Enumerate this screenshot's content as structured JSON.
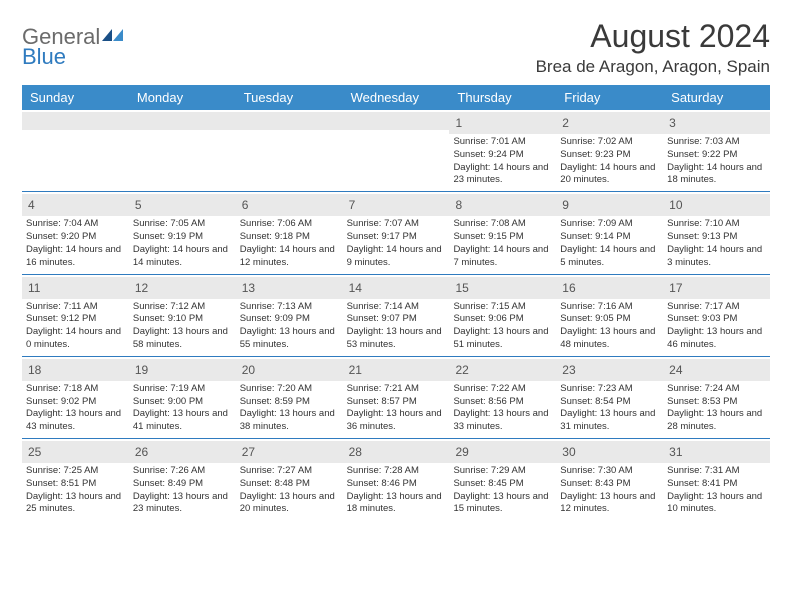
{
  "brand": {
    "part1": "General",
    "part2": "Blue"
  },
  "title": "August 2024",
  "location": "Brea de Aragon, Aragon, Spain",
  "colors": {
    "header_bg": "#3a8bc9",
    "border": "#2f7bbf",
    "daynum_bg": "#e9e9e9",
    "text": "#333333",
    "logo_gray": "#6b6b6b",
    "logo_blue": "#2f7bbf"
  },
  "day_names": [
    "Sunday",
    "Monday",
    "Tuesday",
    "Wednesday",
    "Thursday",
    "Friday",
    "Saturday"
  ],
  "weeks": [
    [
      {
        "n": "",
        "sr": "",
        "ss": "",
        "dl": ""
      },
      {
        "n": "",
        "sr": "",
        "ss": "",
        "dl": ""
      },
      {
        "n": "",
        "sr": "",
        "ss": "",
        "dl": ""
      },
      {
        "n": "",
        "sr": "",
        "ss": "",
        "dl": ""
      },
      {
        "n": "1",
        "sr": "Sunrise: 7:01 AM",
        "ss": "Sunset: 9:24 PM",
        "dl": "Daylight: 14 hours and 23 minutes."
      },
      {
        "n": "2",
        "sr": "Sunrise: 7:02 AM",
        "ss": "Sunset: 9:23 PM",
        "dl": "Daylight: 14 hours and 20 minutes."
      },
      {
        "n": "3",
        "sr": "Sunrise: 7:03 AM",
        "ss": "Sunset: 9:22 PM",
        "dl": "Daylight: 14 hours and 18 minutes."
      }
    ],
    [
      {
        "n": "4",
        "sr": "Sunrise: 7:04 AM",
        "ss": "Sunset: 9:20 PM",
        "dl": "Daylight: 14 hours and 16 minutes."
      },
      {
        "n": "5",
        "sr": "Sunrise: 7:05 AM",
        "ss": "Sunset: 9:19 PM",
        "dl": "Daylight: 14 hours and 14 minutes."
      },
      {
        "n": "6",
        "sr": "Sunrise: 7:06 AM",
        "ss": "Sunset: 9:18 PM",
        "dl": "Daylight: 14 hours and 12 minutes."
      },
      {
        "n": "7",
        "sr": "Sunrise: 7:07 AM",
        "ss": "Sunset: 9:17 PM",
        "dl": "Daylight: 14 hours and 9 minutes."
      },
      {
        "n": "8",
        "sr": "Sunrise: 7:08 AM",
        "ss": "Sunset: 9:15 PM",
        "dl": "Daylight: 14 hours and 7 minutes."
      },
      {
        "n": "9",
        "sr": "Sunrise: 7:09 AM",
        "ss": "Sunset: 9:14 PM",
        "dl": "Daylight: 14 hours and 5 minutes."
      },
      {
        "n": "10",
        "sr": "Sunrise: 7:10 AM",
        "ss": "Sunset: 9:13 PM",
        "dl": "Daylight: 14 hours and 3 minutes."
      }
    ],
    [
      {
        "n": "11",
        "sr": "Sunrise: 7:11 AM",
        "ss": "Sunset: 9:12 PM",
        "dl": "Daylight: 14 hours and 0 minutes."
      },
      {
        "n": "12",
        "sr": "Sunrise: 7:12 AM",
        "ss": "Sunset: 9:10 PM",
        "dl": "Daylight: 13 hours and 58 minutes."
      },
      {
        "n": "13",
        "sr": "Sunrise: 7:13 AM",
        "ss": "Sunset: 9:09 PM",
        "dl": "Daylight: 13 hours and 55 minutes."
      },
      {
        "n": "14",
        "sr": "Sunrise: 7:14 AM",
        "ss": "Sunset: 9:07 PM",
        "dl": "Daylight: 13 hours and 53 minutes."
      },
      {
        "n": "15",
        "sr": "Sunrise: 7:15 AM",
        "ss": "Sunset: 9:06 PM",
        "dl": "Daylight: 13 hours and 51 minutes."
      },
      {
        "n": "16",
        "sr": "Sunrise: 7:16 AM",
        "ss": "Sunset: 9:05 PM",
        "dl": "Daylight: 13 hours and 48 minutes."
      },
      {
        "n": "17",
        "sr": "Sunrise: 7:17 AM",
        "ss": "Sunset: 9:03 PM",
        "dl": "Daylight: 13 hours and 46 minutes."
      }
    ],
    [
      {
        "n": "18",
        "sr": "Sunrise: 7:18 AM",
        "ss": "Sunset: 9:02 PM",
        "dl": "Daylight: 13 hours and 43 minutes."
      },
      {
        "n": "19",
        "sr": "Sunrise: 7:19 AM",
        "ss": "Sunset: 9:00 PM",
        "dl": "Daylight: 13 hours and 41 minutes."
      },
      {
        "n": "20",
        "sr": "Sunrise: 7:20 AM",
        "ss": "Sunset: 8:59 PM",
        "dl": "Daylight: 13 hours and 38 minutes."
      },
      {
        "n": "21",
        "sr": "Sunrise: 7:21 AM",
        "ss": "Sunset: 8:57 PM",
        "dl": "Daylight: 13 hours and 36 minutes."
      },
      {
        "n": "22",
        "sr": "Sunrise: 7:22 AM",
        "ss": "Sunset: 8:56 PM",
        "dl": "Daylight: 13 hours and 33 minutes."
      },
      {
        "n": "23",
        "sr": "Sunrise: 7:23 AM",
        "ss": "Sunset: 8:54 PM",
        "dl": "Daylight: 13 hours and 31 minutes."
      },
      {
        "n": "24",
        "sr": "Sunrise: 7:24 AM",
        "ss": "Sunset: 8:53 PM",
        "dl": "Daylight: 13 hours and 28 minutes."
      }
    ],
    [
      {
        "n": "25",
        "sr": "Sunrise: 7:25 AM",
        "ss": "Sunset: 8:51 PM",
        "dl": "Daylight: 13 hours and 25 minutes."
      },
      {
        "n": "26",
        "sr": "Sunrise: 7:26 AM",
        "ss": "Sunset: 8:49 PM",
        "dl": "Daylight: 13 hours and 23 minutes."
      },
      {
        "n": "27",
        "sr": "Sunrise: 7:27 AM",
        "ss": "Sunset: 8:48 PM",
        "dl": "Daylight: 13 hours and 20 minutes."
      },
      {
        "n": "28",
        "sr": "Sunrise: 7:28 AM",
        "ss": "Sunset: 8:46 PM",
        "dl": "Daylight: 13 hours and 18 minutes."
      },
      {
        "n": "29",
        "sr": "Sunrise: 7:29 AM",
        "ss": "Sunset: 8:45 PM",
        "dl": "Daylight: 13 hours and 15 minutes."
      },
      {
        "n": "30",
        "sr": "Sunrise: 7:30 AM",
        "ss": "Sunset: 8:43 PM",
        "dl": "Daylight: 13 hours and 12 minutes."
      },
      {
        "n": "31",
        "sr": "Sunrise: 7:31 AM",
        "ss": "Sunset: 8:41 PM",
        "dl": "Daylight: 13 hours and 10 minutes."
      }
    ]
  ]
}
